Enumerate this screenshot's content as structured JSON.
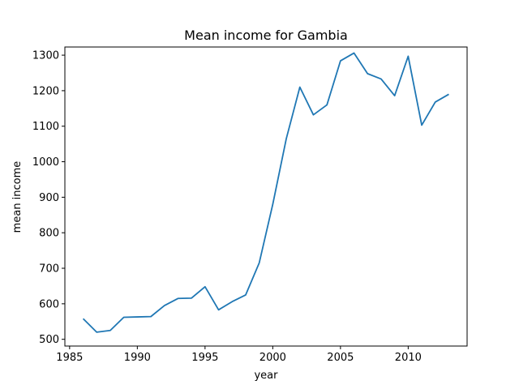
{
  "chart_data": {
    "type": "line",
    "title": "Mean income for Gambia",
    "xlabel": "year",
    "ylabel": "mean income",
    "xlim": [
      1984.65,
      2014.35
    ],
    "ylim": [
      481,
      1323
    ],
    "grid": false,
    "x_ticks": [
      1985,
      1990,
      1995,
      2000,
      2005,
      2010
    ],
    "y_ticks": [
      500,
      600,
      700,
      800,
      900,
      1000,
      1100,
      1200,
      1300
    ],
    "series": [
      {
        "color": "#1f77b4",
        "points": [
          {
            "x": 1986,
            "y": 558
          },
          {
            "x": 1987,
            "y": 520
          },
          {
            "x": 1988,
            "y": 525
          },
          {
            "x": 1989,
            "y": 562
          },
          {
            "x": 1990,
            "y": 563
          },
          {
            "x": 1991,
            "y": 564
          },
          {
            "x": 1992,
            "y": 595
          },
          {
            "x": 1993,
            "y": 615
          },
          {
            "x": 1994,
            "y": 616
          },
          {
            "x": 1995,
            "y": 648
          },
          {
            "x": 1996,
            "y": 583
          },
          {
            "x": 1997,
            "y": 606
          },
          {
            "x": 1998,
            "y": 625
          },
          {
            "x": 1999,
            "y": 715
          },
          {
            "x": 2000,
            "y": 880
          },
          {
            "x": 2001,
            "y": 1065
          },
          {
            "x": 2002,
            "y": 1210
          },
          {
            "x": 2003,
            "y": 1132
          },
          {
            "x": 2004,
            "y": 1160
          },
          {
            "x": 2005,
            "y": 1284
          },
          {
            "x": 2006,
            "y": 1306
          },
          {
            "x": 2007,
            "y": 1248
          },
          {
            "x": 2008,
            "y": 1233
          },
          {
            "x": 2009,
            "y": 1186
          },
          {
            "x": 2010,
            "y": 1297
          },
          {
            "x": 2011,
            "y": 1103
          },
          {
            "x": 2012,
            "y": 1168
          },
          {
            "x": 2013,
            "y": 1190
          }
        ]
      }
    ]
  }
}
